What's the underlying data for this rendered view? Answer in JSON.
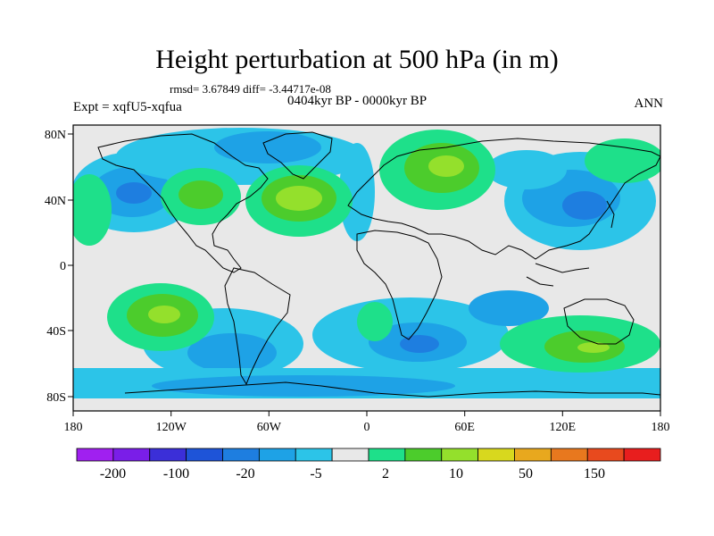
{
  "title": "Height perturbation at 500 hPa (in m)",
  "stats": "rmsd= 3.67849 diff= -3.44717e-08",
  "experiment": "Expt = xqfU5-xqfua",
  "period": "0404kyr BP - 0000kyr BP",
  "season": "ANN",
  "lon_ticks": [
    "180",
    "120W",
    "60W",
    "0",
    "60E",
    "120E",
    "180"
  ],
  "lat_ticks": [
    "80N",
    "40N",
    "0",
    "40S",
    "80S"
  ],
  "colorbar": {
    "labels": [
      "-200",
      "-100",
      "-20",
      "-5",
      "2",
      "10",
      "50",
      "150"
    ],
    "colors": [
      "#a020f0",
      "#7a1ee8",
      "#3b2fd8",
      "#1e54d8",
      "#1e7ee0",
      "#1ea2e6",
      "#2cc4e8",
      "#e8e8e8",
      "#1ee08a",
      "#4ccc2c",
      "#94e02c",
      "#d8d81e",
      "#e8a81e",
      "#e8781e",
      "#e84a1e",
      "#e81e1e"
    ]
  },
  "field_colors": {
    "neutral": "#e8e8e8",
    "neg1": "#2cc4e8",
    "neg2": "#1ea2e6",
    "neg3": "#1e7ee0",
    "pos1": "#1ee08a",
    "pos2": "#4ccc2c",
    "pos3": "#94e02c",
    "pos4": "#c8e01e"
  }
}
